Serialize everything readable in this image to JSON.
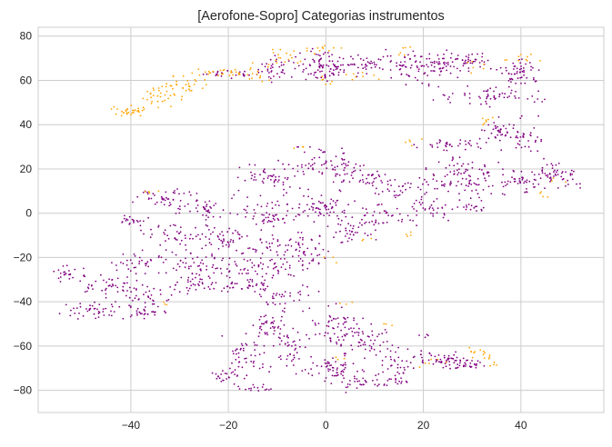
{
  "chart_data": {
    "type": "scatter",
    "title": "[Aerofone-Sopro] Categorias instrumentos",
    "xlabel": "",
    "ylabel": "",
    "xlim": [
      -59,
      57
    ],
    "ylim": [
      -90,
      84
    ],
    "xticks": [
      -40,
      -20,
      0,
      20,
      40
    ],
    "yticks": [
      -80,
      -60,
      -40,
      -20,
      0,
      20,
      40,
      60,
      80
    ],
    "grid": true,
    "colors": {
      "other": "#800080",
      "aerofone_sopro": "#FFA500",
      "grid": "#cccccc",
      "background": "#ffffff"
    },
    "clusters": [
      {
        "group": "aerofone_sopro",
        "cx": -40,
        "cy": 46,
        "rx": 3,
        "ry": 2,
        "n": 30
      },
      {
        "group": "aerofone_sopro",
        "cx": -34,
        "cy": 53,
        "rx": 4,
        "ry": 4,
        "n": 30
      },
      {
        "group": "aerofone_sopro",
        "cx": -29,
        "cy": 58,
        "rx": 4,
        "ry": 3,
        "n": 28
      },
      {
        "group": "aerofone_sopro",
        "cx": -22,
        "cy": 63,
        "rx": 5,
        "ry": 2,
        "n": 25
      },
      {
        "group": "aerofone_sopro",
        "cx": -14,
        "cy": 64,
        "rx": 3,
        "ry": 3,
        "n": 12
      },
      {
        "group": "aerofone_sopro",
        "cx": -8,
        "cy": 70,
        "rx": 4,
        "ry": 3,
        "n": 14
      },
      {
        "group": "aerofone_sopro",
        "cx": -2,
        "cy": 74,
        "rx": 4,
        "ry": 1.5,
        "n": 12
      },
      {
        "group": "aerofone_sopro",
        "cx": 0,
        "cy": 60,
        "rx": 2,
        "ry": 1.5,
        "n": 6
      },
      {
        "group": "aerofone_sopro",
        "cx": 7,
        "cy": 62,
        "rx": 3,
        "ry": 2,
        "n": 8
      },
      {
        "group": "aerofone_sopro",
        "cx": 16,
        "cy": 73,
        "rx": 2,
        "ry": 2,
        "n": 6
      },
      {
        "group": "aerofone_sopro",
        "cx": 31,
        "cy": 66,
        "rx": 2,
        "ry": 3,
        "n": 6
      },
      {
        "group": "aerofone_sopro",
        "cx": 40,
        "cy": 70,
        "rx": 3,
        "ry": 2,
        "n": 10
      },
      {
        "group": "aerofone_sopro",
        "cx": 33,
        "cy": 43,
        "rx": 2,
        "ry": 3,
        "n": 8
      },
      {
        "group": "aerofone_sopro",
        "cx": 19,
        "cy": 32,
        "rx": 2,
        "ry": 2,
        "n": 5
      },
      {
        "group": "aerofone_sopro",
        "cx": -4,
        "cy": 29,
        "rx": 2,
        "ry": 1,
        "n": 3
      },
      {
        "group": "aerofone_sopro",
        "cx": -36,
        "cy": 10,
        "rx": 2,
        "ry": 1,
        "n": 4
      },
      {
        "group": "aerofone_sopro",
        "cx": 17,
        "cy": -10,
        "rx": 2,
        "ry": 1.5,
        "n": 4
      },
      {
        "group": "aerofone_sopro",
        "cx": 1,
        "cy": -21,
        "rx": 1,
        "ry": 1.5,
        "n": 3
      },
      {
        "group": "aerofone_sopro",
        "cx": 5,
        "cy": -40,
        "rx": 2,
        "ry": 2,
        "n": 3
      },
      {
        "group": "aerofone_sopro",
        "cx": 12,
        "cy": -50,
        "rx": 2,
        "ry": 2,
        "n": 3
      },
      {
        "group": "aerofone_sopro",
        "cx": 3,
        "cy": -65,
        "rx": 2,
        "ry": 2,
        "n": 3
      },
      {
        "group": "aerofone_sopro",
        "cx": 30,
        "cy": -63,
        "rx": 3,
        "ry": 2,
        "n": 10
      },
      {
        "group": "aerofone_sopro",
        "cx": 34,
        "cy": -66,
        "rx": 1.5,
        "ry": 2.5,
        "n": 8
      },
      {
        "group": "aerofone_sopro",
        "cx": 22,
        "cy": -68,
        "rx": 3,
        "ry": 2,
        "n": 6
      },
      {
        "group": "aerofone_sopro",
        "cx": 45,
        "cy": 8,
        "rx": 2,
        "ry": 2,
        "n": 4
      },
      {
        "group": "aerofone_sopro",
        "cx": 49,
        "cy": 15,
        "rx": 2,
        "ry": 2,
        "n": 3
      },
      {
        "group": "aerofone_sopro",
        "cx": 8,
        "cy": -12,
        "rx": 1,
        "ry": 1,
        "n": 3
      },
      {
        "group": "aerofone_sopro",
        "cx": -14,
        "cy": 61,
        "rx": 2,
        "ry": 1.5,
        "n": 5
      },
      {
        "group": "aerofone_sopro",
        "cx": -33,
        "cy": -41,
        "rx": 2,
        "ry": 1,
        "n": 3
      },
      {
        "group": "other",
        "cx": -20,
        "cy": 63,
        "rx": 5,
        "ry": 2,
        "n": 25
      },
      {
        "group": "other",
        "cx": -10,
        "cy": 65,
        "rx": 4,
        "ry": 5,
        "n": 40
      },
      {
        "group": "other",
        "cx": 0,
        "cy": 67,
        "rx": 5,
        "ry": 6,
        "n": 90
      },
      {
        "group": "other",
        "cx": 8,
        "cy": 67,
        "rx": 4,
        "ry": 3,
        "n": 35
      },
      {
        "group": "other",
        "cx": 17,
        "cy": 66,
        "rx": 4,
        "ry": 6,
        "n": 55
      },
      {
        "group": "other",
        "cx": 24,
        "cy": 67,
        "rx": 4,
        "ry": 5,
        "n": 50
      },
      {
        "group": "other",
        "cx": 30,
        "cy": 69,
        "rx": 3,
        "ry": 3,
        "n": 35
      },
      {
        "group": "other",
        "cx": 39,
        "cy": 63,
        "rx": 4,
        "ry": 5,
        "n": 55
      },
      {
        "group": "other",
        "cx": 33,
        "cy": 53,
        "rx": 9,
        "ry": 4,
        "n": 60
      },
      {
        "group": "other",
        "cx": 37,
        "cy": 36,
        "rx": 5,
        "ry": 6,
        "n": 60
      },
      {
        "group": "other",
        "cx": 26,
        "cy": 31,
        "rx": 6,
        "ry": 2,
        "n": 35
      },
      {
        "group": "other",
        "cx": 42,
        "cy": 33,
        "rx": 2,
        "ry": 2,
        "n": 10
      },
      {
        "group": "other",
        "cx": 28,
        "cy": 16,
        "rx": 8,
        "ry": 7,
        "n": 100
      },
      {
        "group": "other",
        "cx": 22,
        "cy": 2,
        "rx": 5,
        "ry": 4,
        "n": 35
      },
      {
        "group": "other",
        "cx": 40,
        "cy": 14,
        "rx": 5,
        "ry": 5,
        "n": 45
      },
      {
        "group": "other",
        "cx": 47,
        "cy": 18,
        "rx": 4,
        "ry": 5,
        "n": 50
      },
      {
        "group": "other",
        "cx": 30,
        "cy": 3,
        "rx": 3,
        "ry": 2,
        "n": 15
      },
      {
        "group": "other",
        "cx": 0,
        "cy": 22,
        "rx": 6,
        "ry": 6,
        "n": 60
      },
      {
        "group": "other",
        "cx": -11,
        "cy": 16,
        "rx": 6,
        "ry": 6,
        "n": 55
      },
      {
        "group": "other",
        "cx": 8,
        "cy": 17,
        "rx": 5,
        "ry": 5,
        "n": 45
      },
      {
        "group": "other",
        "cx": 15,
        "cy": 10,
        "rx": 4,
        "ry": 4,
        "n": 30
      },
      {
        "group": "other",
        "cx": -33,
        "cy": 7,
        "rx": 5,
        "ry": 3,
        "n": 40
      },
      {
        "group": "other",
        "cx": -40,
        "cy": -3,
        "rx": 3,
        "ry": 2,
        "n": 20
      },
      {
        "group": "other",
        "cx": -24,
        "cy": 2,
        "rx": 6,
        "ry": 5,
        "n": 45
      },
      {
        "group": "other",
        "cx": -12,
        "cy": 0,
        "rx": 5,
        "ry": 6,
        "n": 50
      },
      {
        "group": "other",
        "cx": 0,
        "cy": 2,
        "rx": 6,
        "ry": 6,
        "n": 70
      },
      {
        "group": "other",
        "cx": 12,
        "cy": -2,
        "rx": 5,
        "ry": 5,
        "n": 45
      },
      {
        "group": "other",
        "cx": -30,
        "cy": -10,
        "rx": 6,
        "ry": 5,
        "n": 45
      },
      {
        "group": "other",
        "cx": -20,
        "cy": -12,
        "rx": 5,
        "ry": 5,
        "n": 45
      },
      {
        "group": "other",
        "cx": -8,
        "cy": -14,
        "rx": 6,
        "ry": 5,
        "n": 55
      },
      {
        "group": "other",
        "cx": 5,
        "cy": -10,
        "rx": 4,
        "ry": 4,
        "n": 30
      },
      {
        "group": "other",
        "cx": -36,
        "cy": -22,
        "rx": 6,
        "ry": 4,
        "n": 45
      },
      {
        "group": "other",
        "cx": -25,
        "cy": -24,
        "rx": 6,
        "ry": 5,
        "n": 55
      },
      {
        "group": "other",
        "cx": -12,
        "cy": -24,
        "rx": 6,
        "ry": 5,
        "n": 55
      },
      {
        "group": "other",
        "cx": -3,
        "cy": -20,
        "rx": 3,
        "ry": 4,
        "n": 20
      },
      {
        "group": "other",
        "cx": -53,
        "cy": -27,
        "rx": 3,
        "ry": 3,
        "n": 25
      },
      {
        "group": "other",
        "cx": -46,
        "cy": -32,
        "rx": 4,
        "ry": 4,
        "n": 30
      },
      {
        "group": "other",
        "cx": -38,
        "cy": -37,
        "rx": 6,
        "ry": 5,
        "n": 45
      },
      {
        "group": "other",
        "cx": -26,
        "cy": -33,
        "rx": 5,
        "ry": 3,
        "n": 35
      },
      {
        "group": "other",
        "cx": -16,
        "cy": -32,
        "rx": 5,
        "ry": 3,
        "n": 35
      },
      {
        "group": "other",
        "cx": -48,
        "cy": -44,
        "rx": 5,
        "ry": 3,
        "n": 40
      },
      {
        "group": "other",
        "cx": -38,
        "cy": -45,
        "rx": 5,
        "ry": 2,
        "n": 30
      },
      {
        "group": "other",
        "cx": -8,
        "cy": -38,
        "rx": 5,
        "ry": 5,
        "n": 35
      },
      {
        "group": "other",
        "cx": -12,
        "cy": -52,
        "rx": 4,
        "ry": 6,
        "n": 45
      },
      {
        "group": "other",
        "cx": -16,
        "cy": -64,
        "rx": 4,
        "ry": 7,
        "n": 45
      },
      {
        "group": "other",
        "cx": -20,
        "cy": -73,
        "rx": 3,
        "ry": 4,
        "n": 25
      },
      {
        "group": "other",
        "cx": -14,
        "cy": -79,
        "rx": 3,
        "ry": 2,
        "n": 15
      },
      {
        "group": "other",
        "cx": -7,
        "cy": -62,
        "rx": 3,
        "ry": 8,
        "n": 40
      },
      {
        "group": "other",
        "cx": 1,
        "cy": -50,
        "rx": 5,
        "ry": 8,
        "n": 60
      },
      {
        "group": "other",
        "cx": 8,
        "cy": -58,
        "rx": 5,
        "ry": 6,
        "n": 50
      },
      {
        "group": "other",
        "cx": 2,
        "cy": -70,
        "rx": 5,
        "ry": 5,
        "n": 55
      },
      {
        "group": "other",
        "cx": 6,
        "cy": -77,
        "rx": 5,
        "ry": 3,
        "n": 35
      },
      {
        "group": "other",
        "cx": 14,
        "cy": -67,
        "rx": 3,
        "ry": 6,
        "n": 35
      },
      {
        "group": "other",
        "cx": 15,
        "cy": -76,
        "rx": 2,
        "ry": 2,
        "n": 10
      },
      {
        "group": "other",
        "cx": 24,
        "cy": -66,
        "rx": 5,
        "ry": 3,
        "n": 50
      },
      {
        "group": "other",
        "cx": 29,
        "cy": -68,
        "rx": 4,
        "ry": 2,
        "n": 30
      },
      {
        "group": "other",
        "cx": 20,
        "cy": -56,
        "rx": 1,
        "ry": 2,
        "n": 4
      }
    ],
    "seed": 1337
  },
  "ui": {
    "title_text": "[Aerofone-Sopro] Categorias instrumentos",
    "x_tick_labels": [
      "−40",
      "−20",
      "0",
      "20",
      "40"
    ],
    "y_tick_labels": [
      "−80",
      "−60",
      "−40",
      "−20",
      "0",
      "20",
      "40",
      "60",
      "80"
    ]
  }
}
